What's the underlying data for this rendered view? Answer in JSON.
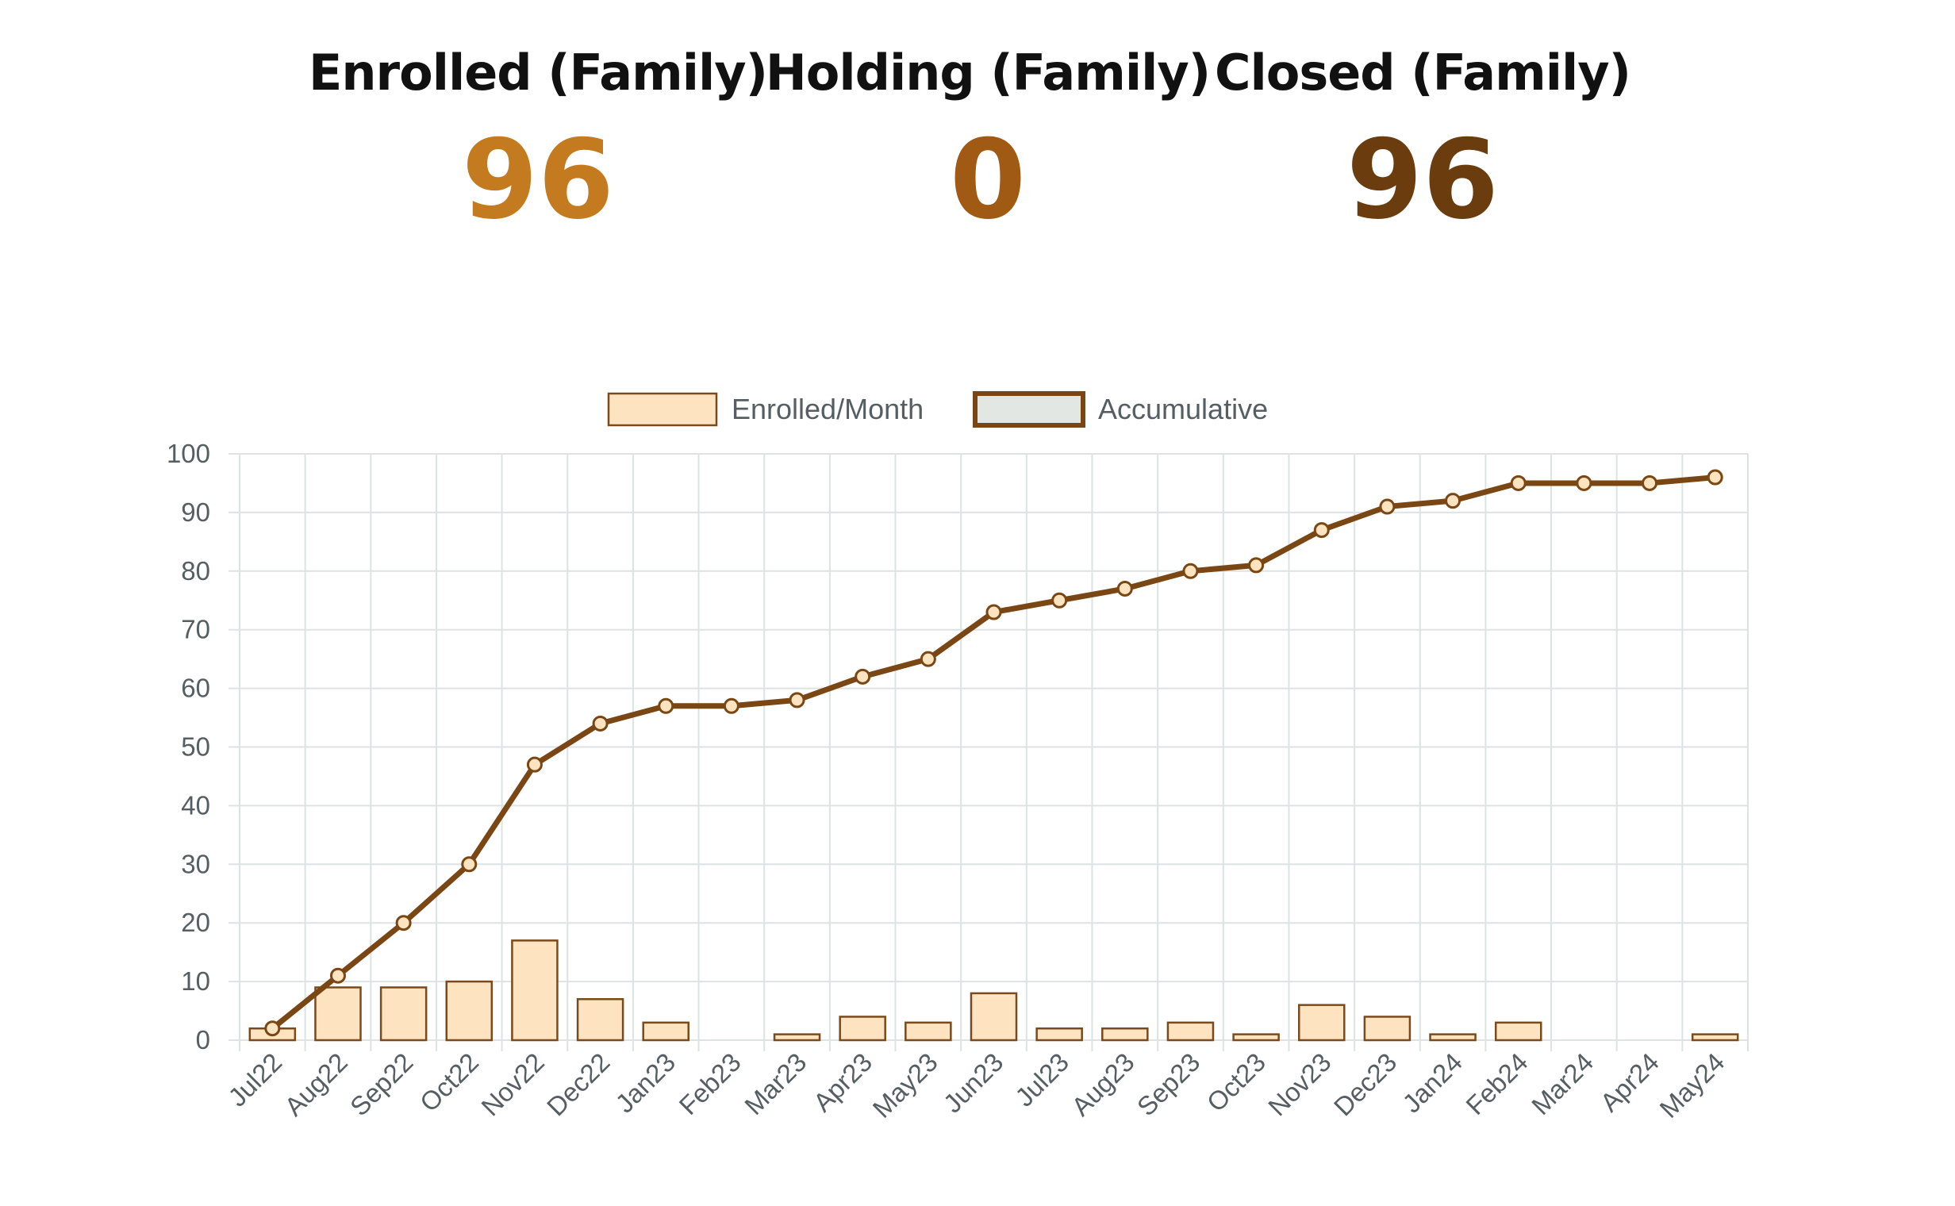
{
  "stats": {
    "enrolled": {
      "label": "Enrolled (Family)",
      "value": "96",
      "color": "#c47a1e"
    },
    "holding": {
      "label": "Holding (Family)",
      "value": "0",
      "color": "#a05a14"
    },
    "closed": {
      "label": "Closed (Family)",
      "value": "96",
      "color": "#6b3d0e"
    }
  },
  "colors": {
    "bar_fill": "#fde3c0",
    "bar_stroke": "#7a4a1c",
    "line": "#7a4714",
    "grid": "#dde3e3",
    "legend_line_fill": "#e3e7e3"
  },
  "chart_data": {
    "type": "bar",
    "categories": [
      "Jul22",
      "Aug22",
      "Sep22",
      "Oct22",
      "Nov22",
      "Dec22",
      "Jan23",
      "Feb23",
      "Mar23",
      "Apr23",
      "May23",
      "Jun23",
      "Jul23",
      "Aug23",
      "Sep23",
      "Oct23",
      "Nov23",
      "Dec23",
      "Jan24",
      "Feb24",
      "Mar24",
      "Apr24",
      "May24"
    ],
    "series": [
      {
        "name": "Enrolled/Month",
        "type": "bar",
        "values": [
          2,
          9,
          9,
          10,
          17,
          7,
          3,
          0,
          1,
          4,
          3,
          8,
          2,
          2,
          3,
          1,
          6,
          4,
          1,
          3,
          0,
          0,
          1
        ]
      },
      {
        "name": "Accumulative",
        "type": "line",
        "values": [
          2,
          11,
          20,
          30,
          47,
          54,
          57,
          57,
          58,
          62,
          65,
          73,
          75,
          77,
          80,
          81,
          87,
          91,
          92,
          95,
          95,
          95,
          96
        ]
      }
    ],
    "ylim": [
      0,
      100
    ],
    "yticks": [
      0,
      10,
      20,
      30,
      40,
      50,
      60,
      70,
      80,
      90,
      100
    ],
    "grid": true,
    "legend": "top"
  }
}
